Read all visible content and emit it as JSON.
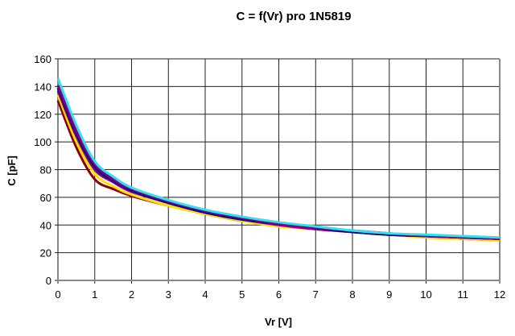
{
  "chart_data": {
    "type": "line",
    "title": "C = f(Vr) pro 1N5819",
    "xlabel": "Vr [V]",
    "ylabel": "C [pF]",
    "xlim": [
      0,
      12
    ],
    "ylim": [
      0,
      160
    ],
    "xticks": [
      "0",
      "1",
      "2",
      "3",
      "4",
      "5",
      "6",
      "7",
      "8",
      "9",
      "10",
      "11",
      "12"
    ],
    "yticks": [
      "0",
      "20",
      "40",
      "60",
      "80",
      "100",
      "120",
      "140",
      "160"
    ],
    "grid": true,
    "legend": "none",
    "x": [
      0,
      0.5,
      1,
      1.5,
      2,
      3,
      4,
      5,
      6,
      7,
      8,
      9,
      10,
      11,
      12
    ],
    "series": [
      {
        "color": "#8B0000",
        "values": [
          130,
          96,
          73,
          66,
          61,
          54,
          48,
          43,
          40,
          37,
          35,
          33,
          32,
          30,
          29
        ]
      },
      {
        "color": "#FFE000",
        "values": [
          134,
          100,
          77,
          68,
          62,
          54,
          48,
          43,
          39,
          37,
          35,
          33,
          31,
          30,
          29
        ]
      },
      {
        "color": "#8B008B",
        "values": [
          137,
          104,
          80,
          71,
          64,
          56,
          49,
          44,
          40,
          37,
          35,
          33,
          32,
          31,
          30
        ]
      },
      {
        "color": "#000080",
        "values": [
          139,
          106,
          82,
          72,
          65,
          56,
          49,
          44,
          41,
          38,
          35,
          33,
          32,
          31,
          30
        ]
      },
      {
        "color": "#800080",
        "values": [
          141,
          108,
          84,
          73,
          66,
          57,
          50,
          45,
          41,
          38,
          36,
          34,
          32,
          31,
          30
        ]
      },
      {
        "color": "#33E0F0",
        "values": [
          146,
          112,
          86,
          75,
          67,
          58,
          51,
          46,
          42,
          39,
          36,
          34,
          33,
          32,
          31
        ]
      }
    ]
  }
}
